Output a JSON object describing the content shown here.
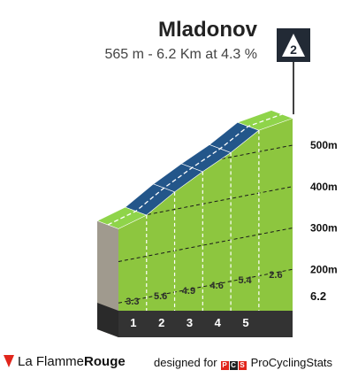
{
  "chart_data": {
    "type": "area",
    "title": "Mladonov",
    "subtitle": "565 m - 6.2 Km at 4.3 %",
    "category_badge": "2",
    "km_markers": [
      "1",
      "2",
      "3",
      "4",
      "5"
    ],
    "final_distance": "6.2",
    "altitude_ticks": [
      "200m",
      "300m",
      "400m",
      "500m"
    ],
    "altitude_tick_values": [
      200,
      300,
      400,
      500
    ],
    "ylim": [
      100,
      565
    ],
    "xlim": [
      0,
      6.2
    ],
    "segments": [
      {
        "start_km": 0,
        "end_km": 1,
        "gradient": 3.3,
        "label": "3.3",
        "color": "#8fd44a"
      },
      {
        "start_km": 1,
        "end_km": 2,
        "gradient": 5.6,
        "label": "5.6",
        "color": "#23568a"
      },
      {
        "start_km": 2,
        "end_km": 3,
        "gradient": 4.9,
        "label": "4.9",
        "color": "#23568a"
      },
      {
        "start_km": 3,
        "end_km": 4,
        "gradient": 4.6,
        "label": "4.6",
        "color": "#23568a"
      },
      {
        "start_km": 4,
        "end_km": 5,
        "gradient": 5.4,
        "label": "5.4",
        "color": "#23568a"
      },
      {
        "start_km": 5,
        "end_km": 6.2,
        "gradient": 2.6,
        "label": "2.6",
        "color": "#8fd44a"
      }
    ],
    "elevation": {
      "km": [
        0,
        1,
        2,
        3,
        4,
        5,
        6.2
      ],
      "alt": [
        298,
        331,
        387,
        436,
        482,
        536,
        565
      ]
    },
    "colors": {
      "fill": "#8dc63f",
      "base": "#333333",
      "side": "#a09a8e",
      "top_green": "#8fd44a",
      "top_blue": "#23568a"
    }
  },
  "footer": {
    "brand_left_a": "La Flamme",
    "brand_left_b": "Rouge",
    "designed_for": "designed for",
    "pcs_letters": [
      "P",
      "C",
      "S"
    ],
    "brand_right": "ProCyclingStats"
  }
}
